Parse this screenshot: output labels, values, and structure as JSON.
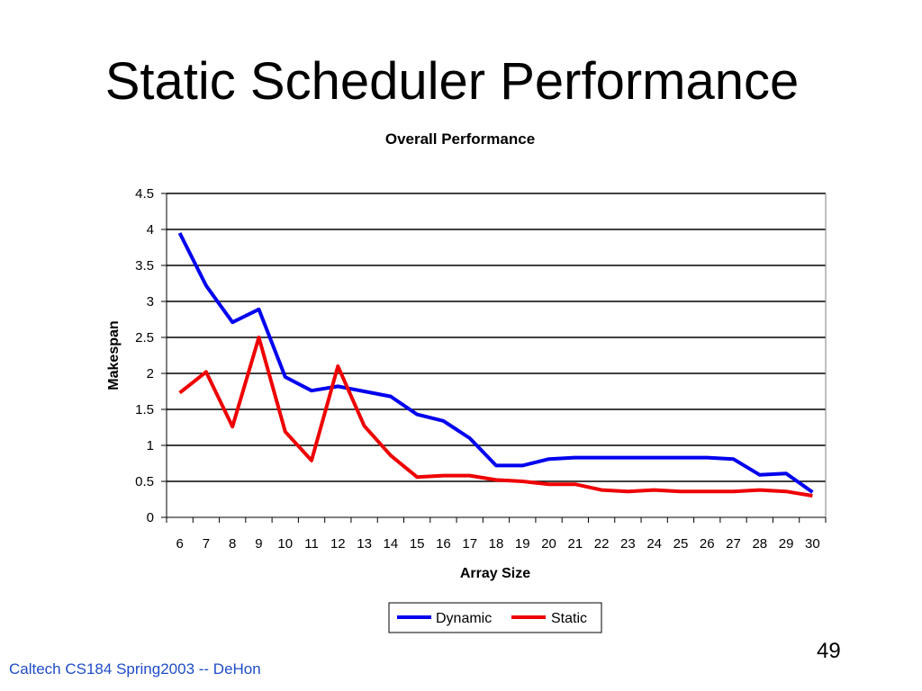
{
  "slide": {
    "title": "Static Scheduler Performance",
    "footer": "Caltech CS184 Spring2003 -- DeHon",
    "page_number": "49"
  },
  "colors": {
    "dynamic": "#0000ee",
    "static": "#ee0000"
  },
  "chart_data": {
    "type": "line",
    "title": "Overall Performance",
    "xlabel": "Array Size",
    "ylabel": "Makespan",
    "categories": [
      "6",
      "7",
      "8",
      "9",
      "10",
      "11",
      "12",
      "13",
      "14",
      "15",
      "16",
      "17",
      "18",
      "19",
      "20",
      "21",
      "22",
      "23",
      "24",
      "25",
      "26",
      "27",
      "28",
      "29",
      "30"
    ],
    "ylim": [
      0,
      4.5
    ],
    "yticks": [
      "0",
      "0.5",
      "1",
      "1.5",
      "2",
      "2.5",
      "3",
      "3.5",
      "4",
      "4.5"
    ],
    "grid": true,
    "legend_position": "bottom",
    "series": [
      {
        "name": "Dynamic",
        "color": "#0000ee",
        "values": [
          3.95,
          3.22,
          2.71,
          2.89,
          1.95,
          1.76,
          1.82,
          1.75,
          1.68,
          1.43,
          1.34,
          1.1,
          0.72,
          0.72,
          0.81,
          0.83,
          0.83,
          0.83,
          0.83,
          0.83,
          0.83,
          0.81,
          0.59,
          0.61,
          0.35
        ]
      },
      {
        "name": "Static",
        "color": "#ee0000",
        "values": [
          1.73,
          2.02,
          1.26,
          2.5,
          1.19,
          0.79,
          2.1,
          1.27,
          0.86,
          0.56,
          0.58,
          0.58,
          0.52,
          0.5,
          0.46,
          0.46,
          0.38,
          0.36,
          0.38,
          0.36,
          0.36,
          0.36,
          0.38,
          0.36,
          0.3
        ]
      }
    ]
  }
}
